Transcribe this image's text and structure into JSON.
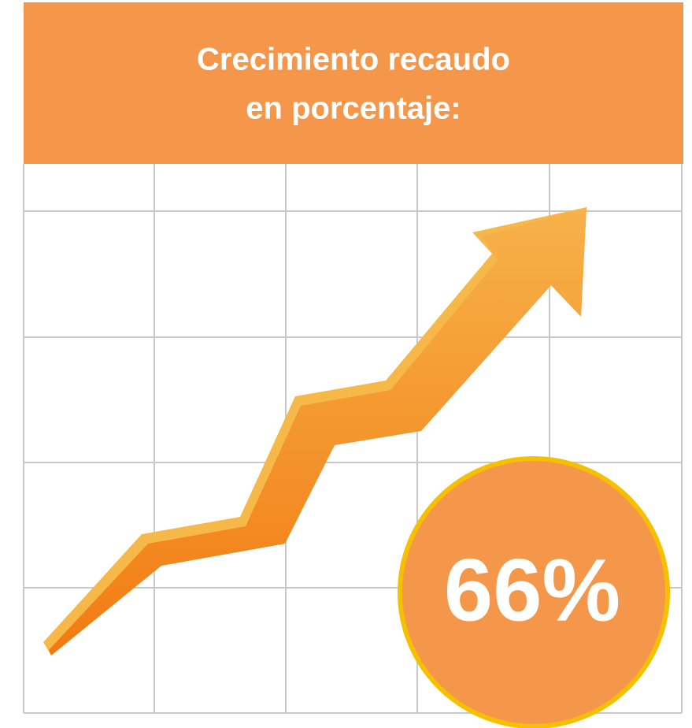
{
  "header": {
    "title": [
      "Crecimiento recaudo",
      "en porcentaje:"
    ]
  },
  "badge": {
    "label": "66%"
  }
}
